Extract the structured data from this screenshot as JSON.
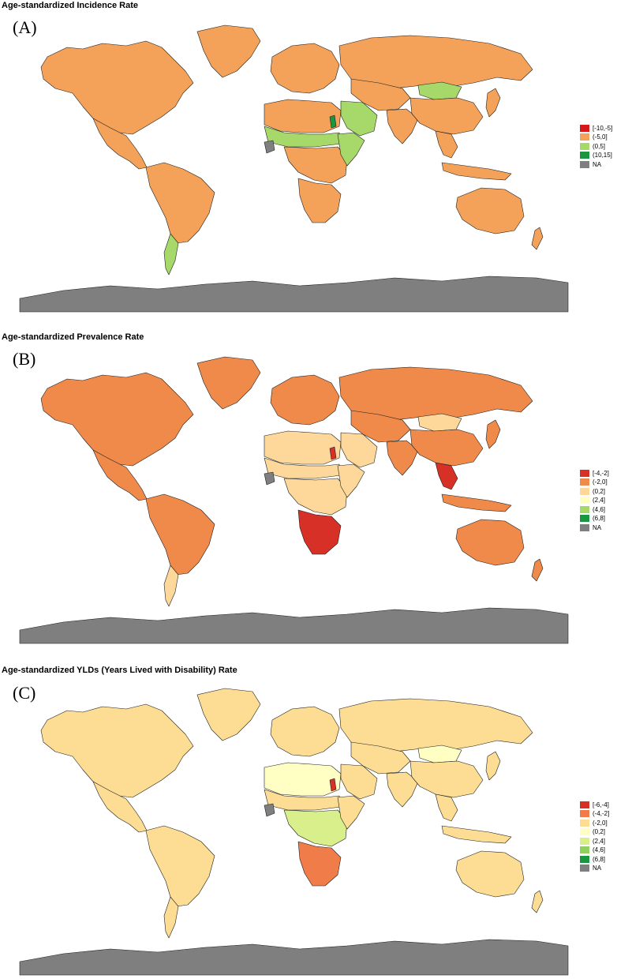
{
  "panels": [
    {
      "title": "Age-standardized Incidence Rate",
      "label": "(A)",
      "legend": [
        {
          "label": "[-10,-5]",
          "color": "#d7191c"
        },
        {
          "label": "(-5,0]",
          "color": "#f4a259"
        },
        {
          "label": "(0,5]",
          "color": "#a6d96a"
        },
        {
          "label": "(10,15]",
          "color": "#1a9641"
        },
        {
          "label": "NA",
          "color": "#7f7f7f"
        }
      ],
      "region_colors": {
        "north_america": "#f4a259",
        "greenland": "#f4a259",
        "mexico": "#f4a259",
        "south_america": "#f4a259",
        "patagonia": "#a6d96a",
        "europe": "#f4a259",
        "russia": "#f4a259",
        "north_africa": "#f4a259",
        "sahel": "#a6d96a",
        "central_africa": "#f4a259",
        "east_africa": "#a6d96a",
        "southern_africa": "#f4a259",
        "arabia": "#a6d96a",
        "central_asia": "#f4a259",
        "mongolia": "#a6d96a",
        "india": "#f4a259",
        "china": "#f4a259",
        "se_asia": "#f4a259",
        "indonesia": "#f4a259",
        "japan": "#f4a259",
        "australia": "#f4a259",
        "new_zealand": "#f4a259",
        "antarctica": "#7f7f7f",
        "west_africa_na": "#7f7f7f",
        "highlight": "#1a9641"
      }
    },
    {
      "title": "Age-standardized Prevalence Rate",
      "label": "(B)",
      "legend": [
        {
          "label": "[-4,-2]",
          "color": "#d73027"
        },
        {
          "label": "(-2,0]",
          "color": "#ef8a4b"
        },
        {
          "label": "(0,2]",
          "color": "#fdd89a"
        },
        {
          "label": "(2,4]",
          "color": "#ffffbf"
        },
        {
          "label": "(4,6]",
          "color": "#a6d96a"
        },
        {
          "label": "(6,8]",
          "color": "#1a9641"
        },
        {
          "label": "NA",
          "color": "#7f7f7f"
        }
      ],
      "region_colors": {
        "north_america": "#ef8a4b",
        "greenland": "#ef8a4b",
        "mexico": "#ef8a4b",
        "south_america": "#ef8a4b",
        "patagonia": "#fdd89a",
        "europe": "#ef8a4b",
        "russia": "#ef8a4b",
        "north_africa": "#fdd89a",
        "sahel": "#fdd89a",
        "central_africa": "#fdd89a",
        "east_africa": "#fdd89a",
        "southern_africa": "#d73027",
        "arabia": "#fdd89a",
        "central_asia": "#ef8a4b",
        "mongolia": "#fdd89a",
        "india": "#ef8a4b",
        "china": "#ef8a4b",
        "se_asia": "#d73027",
        "indonesia": "#ef8a4b",
        "japan": "#ef8a4b",
        "australia": "#ef8a4b",
        "new_zealand": "#ef8a4b",
        "antarctica": "#7f7f7f",
        "west_africa_na": "#7f7f7f",
        "highlight": "#d73027"
      }
    },
    {
      "title": "Age-standardized YLDs (Years Lived with Disability) Rate",
      "label": "(C)",
      "legend": [
        {
          "label": "[-6,-4]",
          "color": "#d73027"
        },
        {
          "label": "(-4,-2]",
          "color": "#f07c4a"
        },
        {
          "label": "(-2,0]",
          "color": "#fddc94"
        },
        {
          "label": "(0,2]",
          "color": "#ffffc4"
        },
        {
          "label": "(2,4]",
          "color": "#d9ef8b"
        },
        {
          "label": "(4,6]",
          "color": "#91cf60"
        },
        {
          "label": "(6,8]",
          "color": "#1a9641"
        },
        {
          "label": "NA",
          "color": "#7f7f7f"
        }
      ],
      "region_colors": {
        "north_america": "#fddc94",
        "greenland": "#fddc94",
        "mexico": "#fddc94",
        "south_america": "#fddc94",
        "patagonia": "#fddc94",
        "europe": "#fddc94",
        "russia": "#fddc94",
        "north_africa": "#ffffc4",
        "sahel": "#fddc94",
        "central_africa": "#d9ef8b",
        "east_africa": "#fddc94",
        "southern_africa": "#f07c4a",
        "arabia": "#fddc94",
        "central_asia": "#fddc94",
        "mongolia": "#ffffc4",
        "india": "#fddc94",
        "china": "#fddc94",
        "se_asia": "#fddc94",
        "indonesia": "#fddc94",
        "japan": "#fddc94",
        "australia": "#fddc94",
        "new_zealand": "#fddc94",
        "antarctica": "#7f7f7f",
        "west_africa_na": "#7f7f7f",
        "highlight": "#d73027"
      }
    }
  ]
}
